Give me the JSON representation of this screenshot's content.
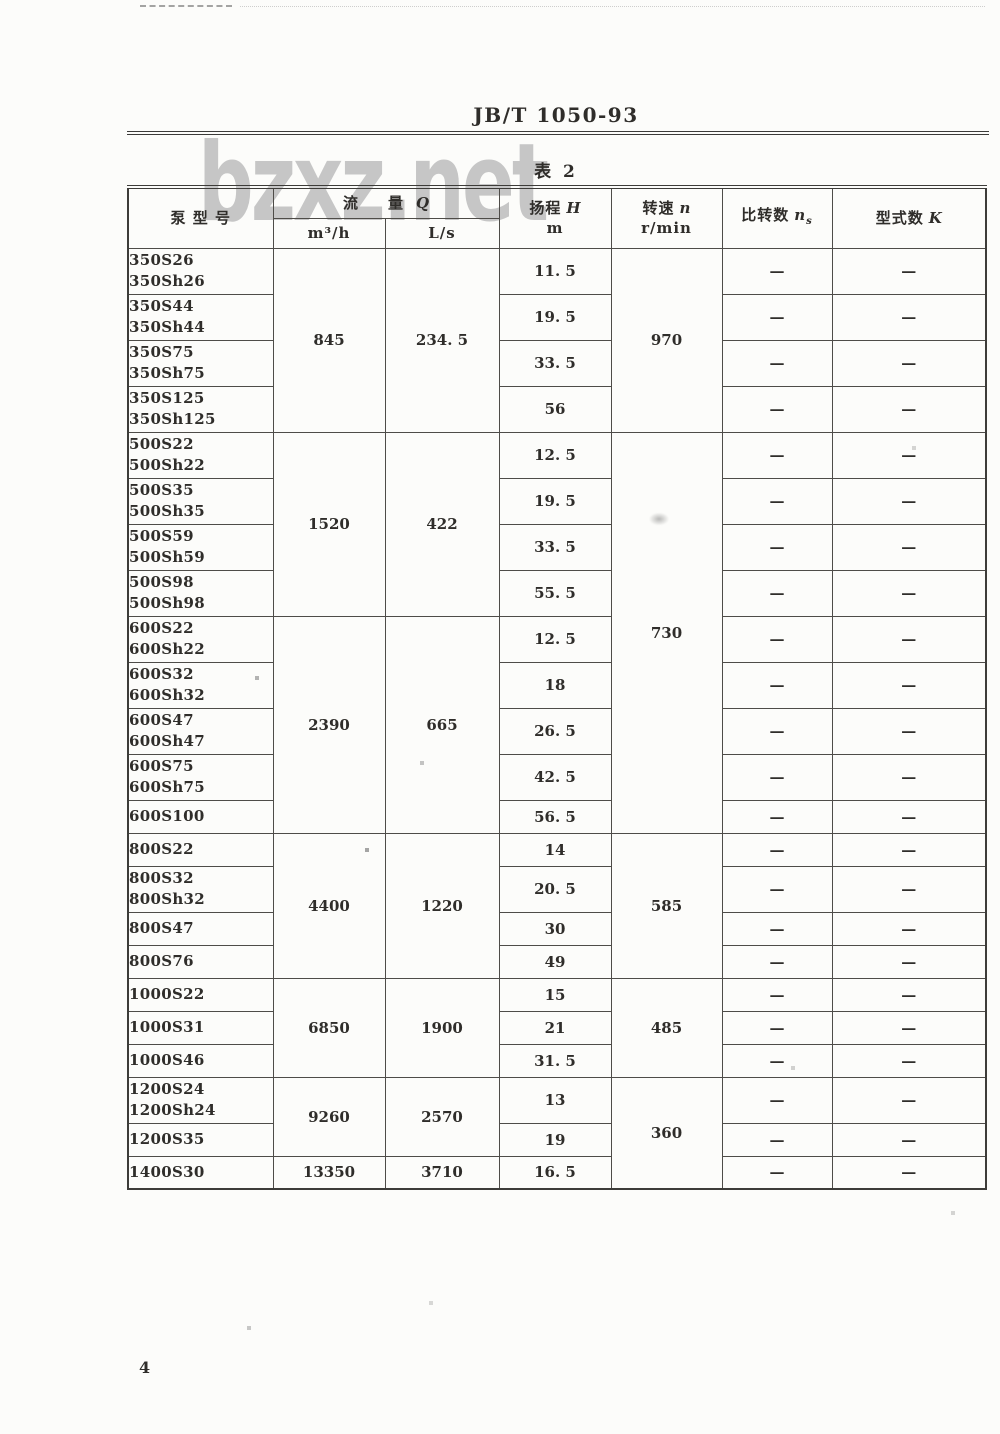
{
  "page": {
    "doc_number": "JB/T 1050-93",
    "table_caption": "表 2",
    "watermark": "bzxz.net",
    "page_number": "4"
  },
  "table": {
    "header": {
      "model": "泵 型 号",
      "flow_label": "流量",
      "flow_var": "Q",
      "flow_unit_m3h": "m³/h",
      "flow_unit_ls": "L/s",
      "head_label": "扬程",
      "head_var": "H",
      "head_unit": "m",
      "speed_label": "转速",
      "speed_var": "n",
      "speed_unit": "r/min",
      "specific_speed_label": "比转数",
      "specific_speed_var": "n",
      "specific_speed_sub": "s",
      "type_number_label": "型式数",
      "type_number_var": "K"
    },
    "empty_cell": "—",
    "groups": [
      {
        "flow_m3h": "845",
        "flow_ls": "234. 5",
        "rows": [
          {
            "models": [
              "350S26",
              "350Sh26"
            ],
            "head": "11. 5"
          },
          {
            "models": [
              "350S44",
              "350Sh44"
            ],
            "head": "19. 5"
          },
          {
            "models": [
              "350S75",
              "350Sh75"
            ],
            "head": "33. 5"
          },
          {
            "models": [
              "350S125",
              "350Sh125"
            ],
            "head": "56"
          }
        ]
      },
      {
        "flow_m3h": "1520",
        "flow_ls": "422",
        "rows": [
          {
            "models": [
              "500S22",
              "500Sh22"
            ],
            "head": "12. 5"
          },
          {
            "models": [
              "500S35",
              "500Sh35"
            ],
            "head": "19. 5"
          },
          {
            "models": [
              "500S59",
              "500Sh59"
            ],
            "head": "33. 5"
          },
          {
            "models": [
              "500S98",
              "500Sh98"
            ],
            "head": "55. 5"
          }
        ]
      },
      {
        "flow_m3h": "2390",
        "flow_ls": "665",
        "rows": [
          {
            "models": [
              "600S22",
              "600Sh22"
            ],
            "head": "12. 5"
          },
          {
            "models": [
              "600S32",
              "600Sh32"
            ],
            "head": "18"
          },
          {
            "models": [
              "600S47",
              "600Sh47"
            ],
            "head": "26. 5"
          },
          {
            "models": [
              "600S75",
              "600Sh75"
            ],
            "head": "42. 5"
          },
          {
            "models": [
              "600S100"
            ],
            "head": "56. 5"
          }
        ]
      },
      {
        "flow_m3h": "4400",
        "flow_ls": "1220",
        "rows": [
          {
            "models": [
              "800S22"
            ],
            "head": "14"
          },
          {
            "models": [
              "800S32",
              "800Sh32"
            ],
            "head": "20. 5"
          },
          {
            "models": [
              "800S47"
            ],
            "head": "30"
          },
          {
            "models": [
              "800S76"
            ],
            "head": "49"
          }
        ]
      },
      {
        "flow_m3h": "6850",
        "flow_ls": "1900",
        "rows": [
          {
            "models": [
              "1000S22"
            ],
            "head": "15"
          },
          {
            "models": [
              "1000S31"
            ],
            "head": "21"
          },
          {
            "models": [
              "1000S46"
            ],
            "head": "31. 5"
          }
        ]
      },
      {
        "flow_m3h": "9260",
        "flow_ls": "2570",
        "rows": [
          {
            "models": [
              "1200S24",
              "1200Sh24"
            ],
            "head": "13"
          },
          {
            "models": [
              "1200S35"
            ],
            "head": "19"
          }
        ]
      },
      {
        "flow_m3h": "13350",
        "flow_ls": "3710",
        "rows": [
          {
            "models": [
              "1400S30"
            ],
            "head": "16. 5"
          }
        ]
      }
    ],
    "speed_spans": [
      {
        "value": "970",
        "row_count": 4
      },
      {
        "value": "730",
        "row_count": 9
      },
      {
        "value": "585",
        "row_count": 4
      },
      {
        "value": "485",
        "row_count": 3
      },
      {
        "value": "360",
        "row_count": 3
      }
    ]
  }
}
